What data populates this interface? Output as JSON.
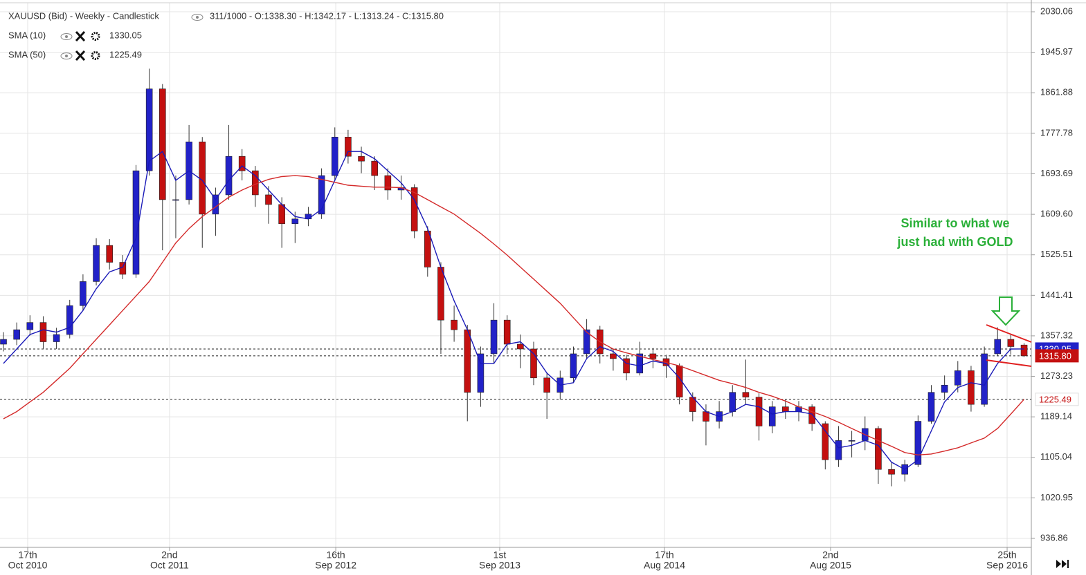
{
  "chart_data": {
    "type": "candlestick",
    "title": "XAUUSD (Bid) - Weekly - Candlestick",
    "info": "311/1000 - O:1338.30 - H:1342.17 - L:1313.24 - C:1315.80",
    "annotation": [
      "Similar to what we",
      "just had with GOLD"
    ],
    "up_color": "#2222c8",
    "down_color": "#c41010",
    "candles": {
      "open": [
        1340,
        1350,
        1370,
        1385,
        1345,
        1360,
        1420,
        1470,
        1545,
        1510,
        1485,
        1700,
        1870,
        1640,
        1640,
        1760,
        1610,
        1650,
        1730,
        1700,
        1650,
        1630,
        1590,
        1600,
        1610,
        1690,
        1770,
        1730,
        1720,
        1690,
        1660,
        1665,
        1575,
        1500,
        1390,
        1370,
        1240,
        1320,
        1390,
        1340,
        1330,
        1270,
        1240,
        1270,
        1320,
        1370,
        1320,
        1310,
        1280,
        1320,
        1310,
        1295,
        1230,
        1200,
        1180,
        1200,
        1240,
        1230,
        1170,
        1210,
        1200,
        1210,
        1175,
        1100,
        1140,
        1140,
        1165,
        1080,
        1070,
        1090,
        1180,
        1240,
        1255,
        1285,
        1215,
        1320,
        1350,
        1338.3
      ],
      "high": [
        1365,
        1385,
        1400,
        1398,
        1374,
        1432,
        1485,
        1560,
        1558,
        1525,
        1712,
        1912,
        1880,
        1690,
        1795,
        1770,
        1665,
        1795,
        1745,
        1710,
        1668,
        1645,
        1615,
        1625,
        1705,
        1790,
        1785,
        1750,
        1730,
        1705,
        1690,
        1672,
        1585,
        1510,
        1420,
        1380,
        1335,
        1425,
        1400,
        1360,
        1345,
        1280,
        1285,
        1335,
        1392,
        1378,
        1330,
        1318,
        1345,
        1332,
        1318,
        1300,
        1240,
        1215,
        1222,
        1255,
        1308,
        1238,
        1222,
        1225,
        1222,
        1215,
        1180,
        1170,
        1160,
        1190,
        1170,
        1095,
        1100,
        1192,
        1255,
        1275,
        1305,
        1295,
        1335,
        1375,
        1360,
        1342.17
      ],
      "low": [
        1325,
        1338,
        1358,
        1330,
        1330,
        1352,
        1410,
        1462,
        1495,
        1475,
        1478,
        1690,
        1535,
        1560,
        1630,
        1540,
        1565,
        1640,
        1680,
        1625,
        1590,
        1540,
        1550,
        1585,
        1600,
        1680,
        1715,
        1695,
        1660,
        1640,
        1640,
        1560,
        1480,
        1320,
        1345,
        1180,
        1210,
        1300,
        1320,
        1290,
        1255,
        1185,
        1225,
        1260,
        1310,
        1300,
        1285,
        1265,
        1275,
        1290,
        1270,
        1215,
        1180,
        1130,
        1165,
        1190,
        1215,
        1140,
        1155,
        1185,
        1180,
        1160,
        1080,
        1085,
        1105,
        1120,
        1050,
        1045,
        1055,
        1085,
        1175,
        1225,
        1240,
        1200,
        1210,
        1315,
        1318,
        1313.24
      ],
      "close": [
        1350,
        1370,
        1385,
        1345,
        1360,
        1420,
        1470,
        1545,
        1510,
        1485,
        1700,
        1870,
        1640,
        1640,
        1760,
        1610,
        1650,
        1730,
        1700,
        1650,
        1630,
        1590,
        1600,
        1610,
        1690,
        1770,
        1730,
        1720,
        1690,
        1660,
        1665,
        1575,
        1500,
        1390,
        1370,
        1240,
        1320,
        1390,
        1340,
        1330,
        1270,
        1240,
        1270,
        1320,
        1370,
        1320,
        1310,
        1280,
        1320,
        1310,
        1295,
        1230,
        1200,
        1180,
        1200,
        1240,
        1230,
        1170,
        1210,
        1200,
        1210,
        1175,
        1100,
        1140,
        1140,
        1165,
        1080,
        1070,
        1090,
        1180,
        1240,
        1255,
        1285,
        1215,
        1320,
        1350,
        1335,
        1315.8
      ]
    },
    "close_label": "1315.80",
    "series": [
      {
        "name": "SMA (10)",
        "color": "#1a1ab8",
        "values": [
          1300,
          1330,
          1360,
          1370,
          1365,
          1375,
          1410,
          1455,
          1490,
          1500,
          1560,
          1720,
          1740,
          1680,
          1700,
          1680,
          1640,
          1680,
          1710,
          1690,
          1660,
          1630,
          1605,
          1600,
          1620,
          1680,
          1740,
          1740,
          1725,
          1700,
          1675,
          1640,
          1580,
          1500,
          1430,
          1370,
          1300,
          1300,
          1340,
          1345,
          1320,
          1280,
          1255,
          1260,
          1310,
          1335,
          1325,
          1300,
          1295,
          1305,
          1300,
          1270,
          1230,
          1200,
          1190,
          1200,
          1215,
          1210,
          1195,
          1200,
          1200,
          1195,
          1160,
          1125,
          1130,
          1140,
          1130,
          1095,
          1080,
          1100,
          1160,
          1220,
          1250,
          1260,
          1255,
          1300,
          1330,
          1330.05
        ]
      },
      {
        "name": "SMA (50)",
        "color": "#d42a2a",
        "values": [
          1185,
          1200,
          1220,
          1240,
          1265,
          1290,
          1320,
          1350,
          1380,
          1410,
          1440,
          1470,
          1510,
          1550,
          1580,
          1605,
          1625,
          1645,
          1660,
          1672,
          1682,
          1688,
          1690,
          1688,
          1682,
          1676,
          1670,
          1668,
          1666,
          1666,
          1665,
          1655,
          1640,
          1625,
          1610,
          1590,
          1570,
          1548,
          1525,
          1500,
          1475,
          1450,
          1425,
          1395,
          1365,
          1345,
          1330,
          1322,
          1315,
          1308,
          1302,
          1295,
          1285,
          1275,
          1265,
          1258,
          1250,
          1240,
          1232,
          1222,
          1210,
          1200,
          1190,
          1178,
          1165,
          1152,
          1140,
          1128,
          1115,
          1110,
          1112,
          1118,
          1125,
          1135,
          1145,
          1165,
          1195,
          1225.49
        ]
      }
    ],
    "ylim": [
      918.2,
      2054.5
    ],
    "yticks": [
      2030.06,
      1945.97,
      1861.88,
      1777.78,
      1693.69,
      {
        "value": 1609.6,
        "label": "1609.60"
      },
      1525.51,
      1441.41,
      1357.32,
      1273.23,
      1189.14,
      1105.04,
      1020.95,
      936.86
    ],
    "xticks": [
      {
        "value": 1.83,
        "label": [
          "17th",
          "Oct 2010"
        ]
      },
      {
        "value": 12.53,
        "label": [
          "2nd",
          "Oct 2011"
        ]
      },
      {
        "value": 25.07,
        "label": [
          "16th",
          "Sep 2012"
        ]
      },
      {
        "value": 37.44,
        "label": [
          "1st",
          "Sep 2013"
        ]
      },
      {
        "value": 49.87,
        "label": [
          "17th",
          "Aug 2014"
        ]
      },
      {
        "value": 62.4,
        "label": [
          "2nd",
          "Aug 2015"
        ]
      },
      {
        "value": 75.72,
        "label": [
          "25th",
          "Sep 2016"
        ]
      }
    ],
    "grid": true
  }
}
